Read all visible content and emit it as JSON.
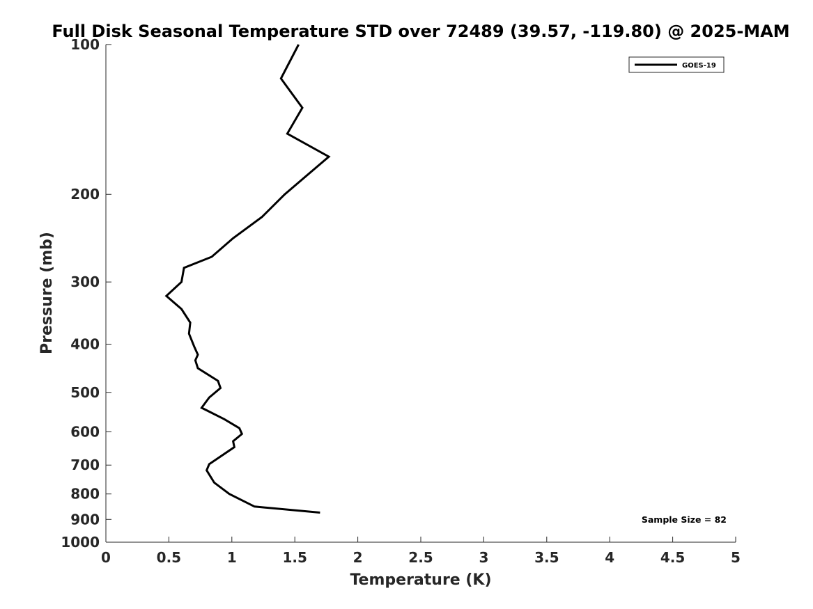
{
  "chart_data": {
    "type": "line",
    "title": "Full Disk Seasonal Temperature STD over 72489 (39.57, -119.80) @ 2025-MAM",
    "xlabel": "Temperature (K)",
    "ylabel": "Pressure (mb)",
    "xlim": [
      0,
      5
    ],
    "ylim": [
      100,
      1000
    ],
    "y_scale": "log",
    "y_reversed": true,
    "x_ticks": [
      0,
      0.5,
      1,
      1.5,
      2,
      2.5,
      3,
      3.5,
      4,
      4.5,
      5
    ],
    "x_tick_labels": [
      "0",
      "0.5",
      "1",
      "1.5",
      "2",
      "2.5",
      "3",
      "3.5",
      "4",
      "4.5",
      "5"
    ],
    "y_ticks": [
      100,
      200,
      300,
      400,
      500,
      600,
      700,
      800,
      900,
      1000
    ],
    "y_tick_labels": [
      "100",
      "200",
      "300",
      "400",
      "500",
      "600",
      "700",
      "800",
      "900",
      "1000"
    ],
    "grid": false,
    "legend_position": "top-right",
    "series": [
      {
        "name": "GOES-19",
        "color": "#000000",
        "points": [
          [
            1.53,
            100
          ],
          [
            1.39,
            117
          ],
          [
            1.56,
            134
          ],
          [
            1.44,
            151
          ],
          [
            1.77,
            168
          ],
          [
            1.42,
            200
          ],
          [
            1.24,
            222
          ],
          [
            1.01,
            245
          ],
          [
            0.84,
            267
          ],
          [
            0.62,
            281
          ],
          [
            0.6,
            300
          ],
          [
            0.48,
            320
          ],
          [
            0.6,
            340
          ],
          [
            0.67,
            362
          ],
          [
            0.66,
            381
          ],
          [
            0.7,
            404
          ],
          [
            0.73,
            420
          ],
          [
            0.71,
            431
          ],
          [
            0.73,
            447
          ],
          [
            0.89,
            474
          ],
          [
            0.91,
            490
          ],
          [
            0.82,
            512
          ],
          [
            0.76,
            537
          ],
          [
            0.94,
            566
          ],
          [
            1.06,
            590
          ],
          [
            1.08,
            606
          ],
          [
            1.01,
            627
          ],
          [
            1.02,
            644
          ],
          [
            0.82,
            697
          ],
          [
            0.8,
            717
          ],
          [
            0.86,
            759
          ],
          [
            0.98,
            800
          ],
          [
            1.18,
            848
          ],
          [
            1.7,
            872
          ]
        ]
      }
    ],
    "annotations": [
      {
        "text": "Sample Size = 82"
      }
    ]
  }
}
